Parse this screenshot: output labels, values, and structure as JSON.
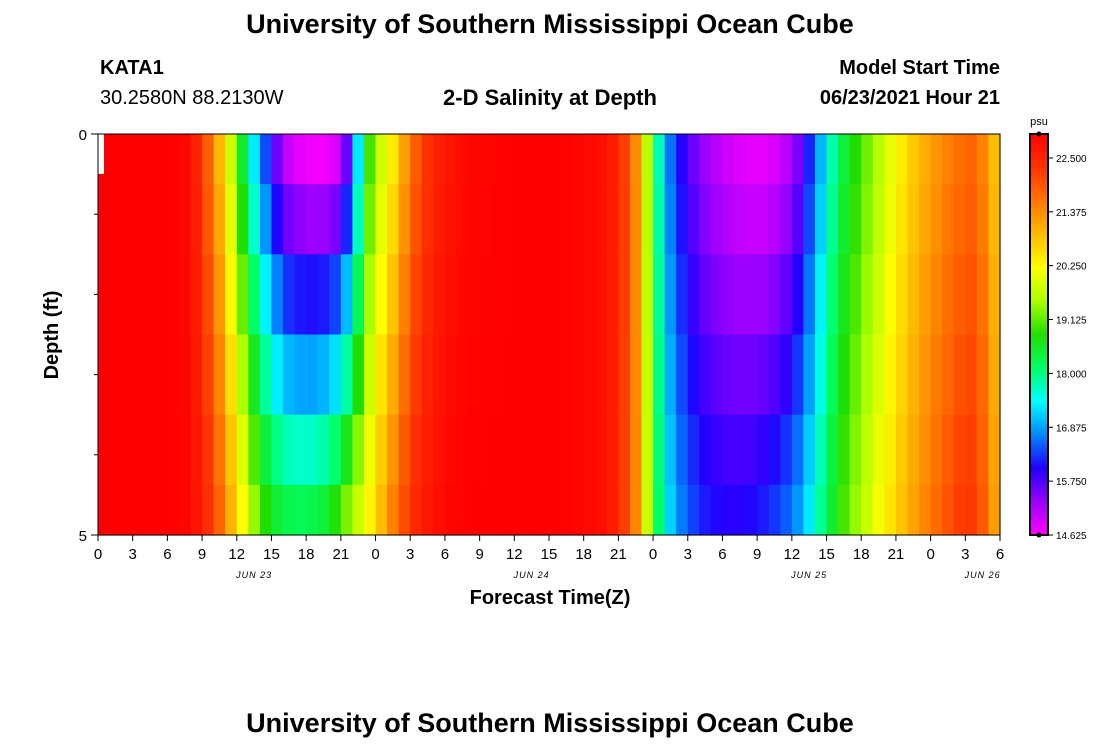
{
  "header": {
    "title_top": "University of Southern Mississippi Ocean Cube",
    "station": "KATA1",
    "coords": "30.2580N  88.2130W",
    "plot_title": "2-D Salinity at Depth",
    "model_label": "Model Start Time",
    "model_time": "06/23/2021 Hour 21"
  },
  "footer": {
    "title_bottom": "University of Southern Mississippi Ocean Cube"
  },
  "chart_data": {
    "type": "heatmap",
    "title": "2-D Salinity at Depth",
    "xlabel": "Forecast Time(Z)",
    "ylabel": "Depth (ft)",
    "x_tick_labels": [
      "0",
      "3",
      "6",
      "9",
      "12",
      "15",
      "18",
      "21",
      "0",
      "3",
      "6",
      "9",
      "12",
      "15",
      "18",
      "21",
      "0",
      "3",
      "6",
      "9",
      "12",
      "15",
      "18",
      "21",
      "0",
      "3",
      "6"
    ],
    "x_date_labels": [
      {
        "label": "JUN 23",
        "tick_index": 4.5
      },
      {
        "label": "JUN 24",
        "tick_index": 12.5
      },
      {
        "label": "JUN 25",
        "tick_index": 20.5
      },
      {
        "label": "JUN 26",
        "tick_index": 25.5
      }
    ],
    "x_range_hours": [
      0,
      78
    ],
    "y_tick_labels": [
      "0",
      "5"
    ],
    "y_range": [
      0,
      5
    ],
    "depth_levels": [
      0.25,
      1.0,
      2.0,
      3.0,
      4.0,
      4.75
    ],
    "time_step_hours": 1,
    "colorbar": {
      "unit": "psu",
      "min": 14.625,
      "max": 23.0,
      "tick_labels": [
        "22.500",
        "21.375",
        "20.250",
        "19.125",
        "18.000",
        "16.875",
        "15.750",
        "14.625"
      ],
      "colors": [
        "#ff00ff",
        "#9900ff",
        "#2200ff",
        "#0088ff",
        "#00ffff",
        "#00ff66",
        "#22dd00",
        "#aaff00",
        "#ffff00",
        "#ffbb00",
        "#ff7700",
        "#ff3300",
        "#ff0000"
      ]
    },
    "salinity_profile": {
      "anchors_hours": [
        0,
        6,
        8,
        10,
        11,
        12,
        13,
        14,
        15,
        16,
        18,
        20,
        21,
        22,
        23,
        24,
        25,
        26,
        27,
        28,
        30,
        32,
        36,
        40,
        44,
        46,
        47,
        48,
        49,
        50,
        51,
        52,
        54,
        56,
        58,
        60,
        61,
        62,
        63,
        64,
        66,
        68,
        70,
        72,
        74,
        75,
        76,
        77,
        78
      ],
      "surface_psu": [
        23.0,
        23.0,
        22.9,
        21.5,
        20.4,
        19.2,
        17.8,
        16.8,
        16.0,
        15.1,
        14.7,
        14.7,
        15.0,
        16.2,
        18.4,
        19.6,
        20.0,
        20.8,
        21.6,
        22.2,
        22.7,
        22.9,
        23.0,
        23.0,
        22.8,
        22.0,
        20.8,
        18.5,
        17.0,
        16.2,
        15.8,
        15.4,
        15.0,
        14.8,
        14.8,
        15.2,
        15.8,
        16.6,
        17.4,
        18.2,
        19.0,
        19.8,
        20.6,
        21.2,
        21.6,
        21.8,
        21.8,
        21.2,
        20.6
      ],
      "bottom_psu": [
        23.0,
        23.0,
        22.9,
        22.2,
        21.4,
        20.6,
        19.8,
        19.0,
        18.6,
        18.3,
        18.2,
        18.5,
        19.0,
        19.5,
        20.0,
        20.6,
        21.2,
        21.8,
        22.3,
        22.6,
        22.9,
        23.0,
        23.0,
        23.0,
        22.8,
        22.0,
        20.9,
        18.7,
        17.5,
        16.8,
        16.5,
        16.2,
        16.0,
        16.0,
        16.2,
        16.6,
        17.0,
        17.6,
        18.2,
        18.8,
        19.6,
        20.3,
        21.0,
        21.6,
        22.1,
        22.3,
        22.2,
        21.6,
        20.8
      ]
    }
  }
}
